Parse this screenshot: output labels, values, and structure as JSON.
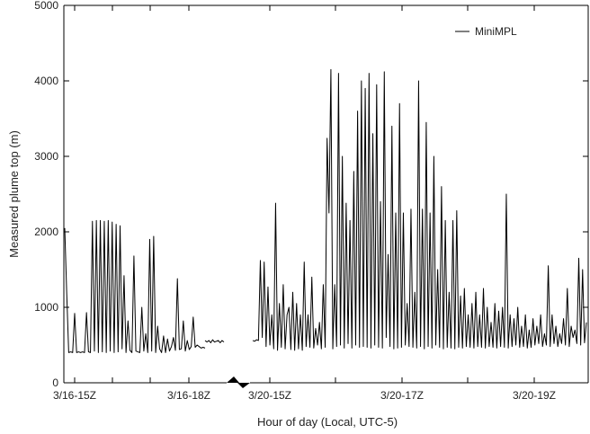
{
  "chart_data": {
    "type": "line",
    "title": "",
    "xlabel": "Hour of day (Local, UTC-5)",
    "ylabel": "Measured plume top (m)",
    "ylim": [
      0,
      5000
    ],
    "yticks": [
      0,
      1000,
      2000,
      3000,
      4000,
      5000
    ],
    "xtick_labels": [
      "3/16-15Z",
      "3/16-18Z",
      "3/20-15Z",
      "3/20-17Z",
      "3/20-19Z"
    ],
    "axis_break": "between 3/16-18Z and 3/20-15Z",
    "legend": {
      "entries": [
        "MiniMPL"
      ],
      "position": "top-right"
    },
    "grid": false,
    "series": [
      {
        "name": "MiniMPL",
        "color": "#000000",
        "segments": [
          {
            "x_start": "3/16-15Z",
            "x_end": "3/16-18Z",
            "values": [
              2050,
              1180,
              400,
              410,
              400,
              920,
              400,
              410,
              400,
              410,
              400,
              930,
              410,
              400,
              2140,
              420,
              2150,
              400,
              2150,
              410,
              2140,
              400,
              2150,
              420,
              2130,
              400,
              2100,
              410,
              2080,
              450,
              1420,
              400,
              820,
              430,
              400,
              1680,
              420,
              410,
              400,
              1000,
              420,
              650,
              400,
              1900,
              420,
              1940,
              400,
              750,
              450,
              400,
              620,
              400,
              580,
              420,
              480,
              600,
              430,
              1380,
              440,
              450,
              820,
              420,
              560,
              440,
              480,
              870,
              470,
              500,
              480,
              460,
              470,
              460
            ]
          },
          {
            "x_start": "3/16-18Z",
            "x_end": "3/16-19Z",
            "values": [
              560,
              540,
              560,
              530,
              570,
              540,
              550,
              560,
              530,
              560,
              540
            ]
          },
          {
            "x_start": "3/20-15Z",
            "x_end": "3/20-20Z",
            "values": [
              560,
              550,
              570,
              560,
              1620,
              600,
              1600,
              480,
              1270,
              500,
              900,
              450,
              2380,
              430,
              1050,
              470,
              1300,
              450,
              900,
              1000,
              440,
              1200,
              430,
              1050,
              450,
              900,
              430,
              1600,
              480,
              900,
              470,
              1400,
              460,
              720,
              500,
              800,
              450,
              1300,
              470,
              3240,
              2250,
              4150,
              450,
              1300,
              480,
              4100,
              500,
              3000,
              460,
              2380,
              520,
              2150,
              460,
              2800,
              500,
              3600,
              470,
              4000,
              480,
              3900,
              470,
              4100,
              460,
              3300,
              500,
              3950,
              470,
              2400,
              460,
              4120,
              600,
              1700,
              480,
              3400,
              450,
              2250,
              460,
              3700,
              470,
              2250,
              500,
              1050,
              480,
              2300,
              470,
              1200,
              460,
              4000,
              480,
              2300,
              450,
              3450,
              480,
              2250,
              460,
              3000,
              500,
              1500,
              470,
              2600,
              450,
              2150,
              470,
              1200,
              460,
              2150,
              450,
              2280,
              470,
              1150,
              460,
              1250,
              480,
              900,
              470,
              1050,
              460,
              1200,
              480,
              900,
              470,
              1250,
              460,
              1000,
              480,
              800,
              470,
              1050,
              460,
              950,
              480,
              1000,
              470,
              2500,
              460,
              900,
              480,
              850,
              500,
              1000,
              470,
              750,
              480,
              900,
              460,
              700,
              470,
              850,
              500,
              750,
              520,
              900,
              480,
              650,
              500,
              1550,
              480,
              900,
              520,
              750,
              480,
              650,
              520,
              850,
              500,
              1250,
              480,
              750,
              600,
              700,
              520,
              1650,
              500,
              1500,
              530,
              800
            ]
          }
        ]
      }
    ]
  }
}
